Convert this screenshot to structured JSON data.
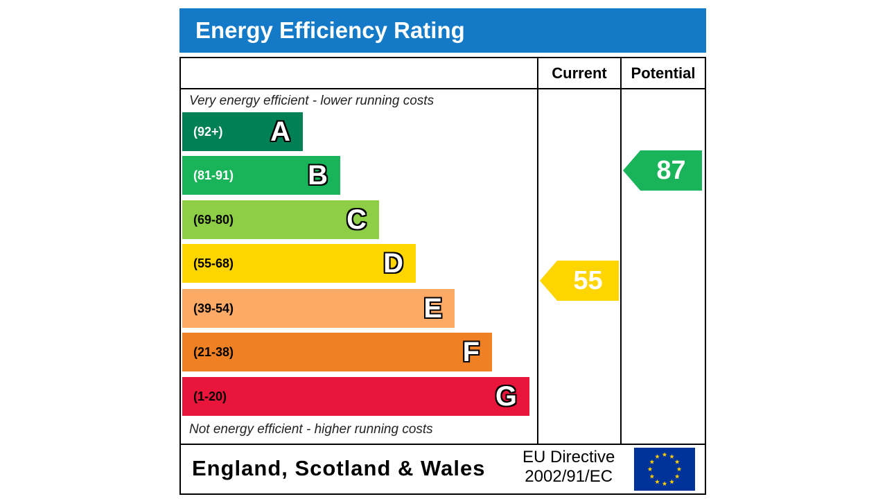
{
  "title": "Energy Efficiency Rating",
  "columns": {
    "current": "Current",
    "potential": "Potential"
  },
  "captions": {
    "top": "Very energy efficient - lower running costs",
    "bottom": "Not energy efficient - higher running costs"
  },
  "bands": [
    {
      "range": "(92+)",
      "letter": "A",
      "color": "#008054",
      "range_color": "#ffffff"
    },
    {
      "range": "(81-91)",
      "letter": "B",
      "color": "#19b459",
      "range_color": "#ffffff"
    },
    {
      "range": "(69-80)",
      "letter": "C",
      "color": "#8dce46",
      "range_color": "#000000"
    },
    {
      "range": "(55-68)",
      "letter": "D",
      "color": "#ffd500",
      "range_color": "#000000"
    },
    {
      "range": "(39-54)",
      "letter": "E",
      "color": "#fcaa65",
      "range_color": "#000000"
    },
    {
      "range": "(21-38)",
      "letter": "F",
      "color": "#ef8023",
      "range_color": "#000000"
    },
    {
      "range": "(1-20)",
      "letter": "G",
      "color": "#e9153b",
      "range_color": "#000000"
    }
  ],
  "current": {
    "value": "55",
    "band": "D",
    "color": "#ffd500"
  },
  "potential": {
    "value": "87",
    "band": "B",
    "color": "#19b459"
  },
  "footer": {
    "region": "England, Scotland & Wales",
    "directive_line1": "EU Directive",
    "directive_line2": "2002/91/EC",
    "flag_icon": "eu-flag-icon",
    "flag_color": "#003399",
    "star_color": "#ffcc00"
  },
  "header_color": "#1479c7"
}
